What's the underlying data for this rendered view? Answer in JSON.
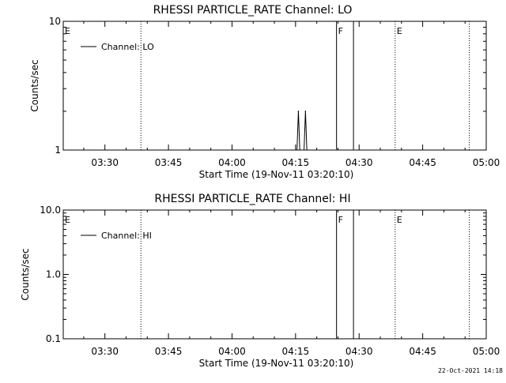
{
  "footer": {
    "timestamp": "22-Oct-2021 14:18"
  },
  "chart_data": [
    {
      "type": "line",
      "title": "RHESSI PARTICLE_RATE Channel: LO",
      "xlabel": "Start Time (19-Nov-11 03:20:10)",
      "ylabel": "Counts/sec",
      "yscale": "log",
      "xlim": [
        "03:20:10",
        "05:00:00"
      ],
      "ylim": [
        1,
        10
      ],
      "x_ticks": [
        "03:30",
        "03:45",
        "04:00",
        "04:15",
        "04:30",
        "04:45",
        "05:00"
      ],
      "y_ticks": [
        "1",
        "10"
      ],
      "legend": {
        "position": "top-left",
        "entries": [
          "Channel: LO"
        ]
      },
      "series": [
        {
          "name": "Channel: LO",
          "x": [
            "04:15:00",
            "04:15:20",
            "04:15:40",
            "04:16:00",
            "04:16:20",
            "04:16:40",
            "04:17:00",
            "04:17:20",
            "04:17:40",
            "04:18:00"
          ],
          "y": [
            1,
            1,
            2,
            1,
            1,
            1,
            1,
            2,
            1,
            1
          ]
        }
      ],
      "markers": [
        {
          "label": "E",
          "time": "03:20:10",
          "style": "solid"
        },
        {
          "label": "",
          "time": "03:38:30",
          "style": "dotted"
        },
        {
          "label": "F",
          "time": "04:24:40",
          "style": "solid"
        },
        {
          "label": "",
          "time": "04:28:40",
          "style": "solid"
        },
        {
          "label": "E",
          "time": "04:38:30",
          "style": "dotted"
        },
        {
          "label": "",
          "time": "04:56:00",
          "style": "dotted"
        }
      ]
    },
    {
      "type": "line",
      "title": "RHESSI PARTICLE_RATE Channel: HI",
      "xlabel": "Start Time (19-Nov-11 03:20:10)",
      "ylabel": "Counts/sec",
      "yscale": "log",
      "xlim": [
        "03:20:10",
        "05:00:00"
      ],
      "ylim": [
        0.1,
        10
      ],
      "x_ticks": [
        "03:30",
        "03:45",
        "04:00",
        "04:15",
        "04:30",
        "04:45",
        "05:00"
      ],
      "y_ticks": [
        "0.1",
        "1.0",
        "10.0"
      ],
      "legend": {
        "position": "top-left",
        "entries": [
          "Channel: HI"
        ]
      },
      "series": [
        {
          "name": "Channel: HI",
          "x": [],
          "y": []
        }
      ],
      "markers": [
        {
          "label": "E",
          "time": "03:20:10",
          "style": "solid"
        },
        {
          "label": "",
          "time": "03:38:30",
          "style": "dotted"
        },
        {
          "label": "F",
          "time": "04:24:40",
          "style": "solid"
        },
        {
          "label": "",
          "time": "04:28:40",
          "style": "solid"
        },
        {
          "label": "E",
          "time": "04:38:30",
          "style": "dotted"
        },
        {
          "label": "",
          "time": "04:56:00",
          "style": "dotted"
        }
      ]
    }
  ]
}
